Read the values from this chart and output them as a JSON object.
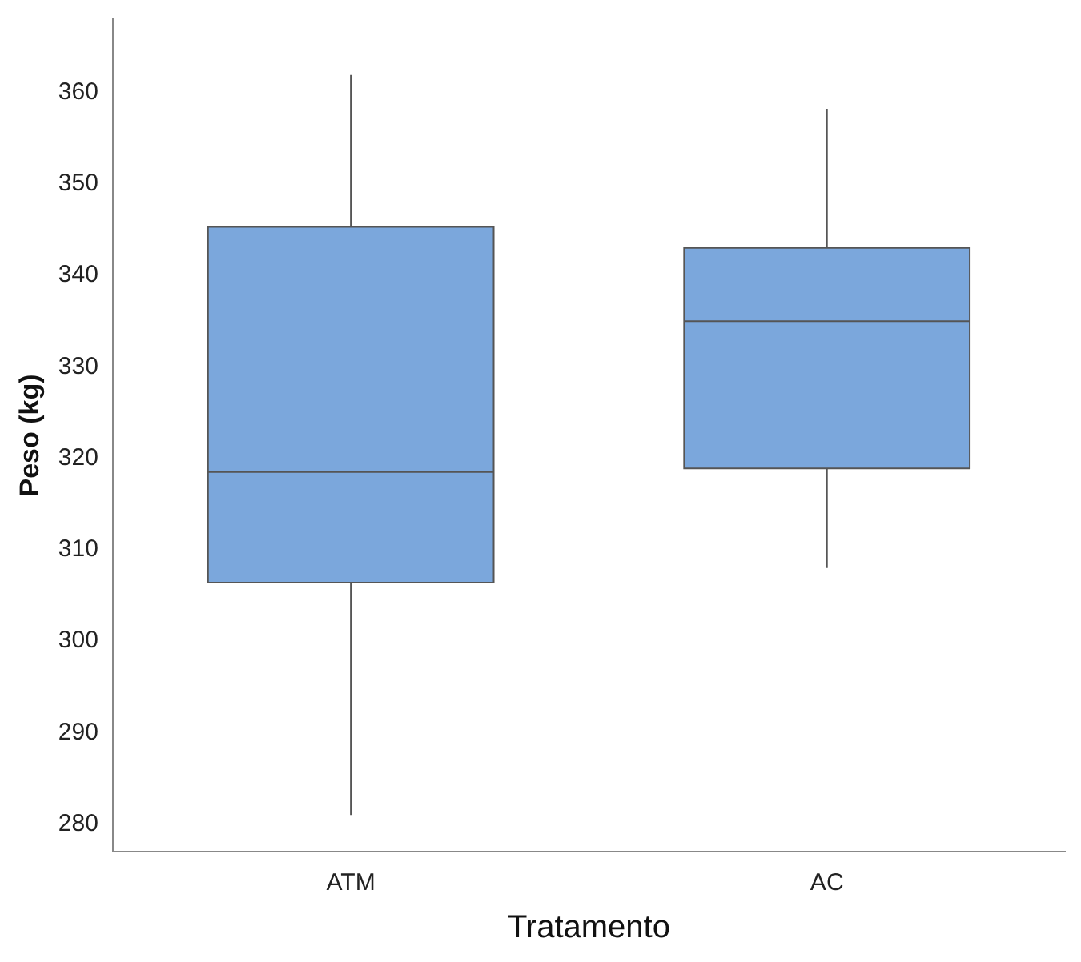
{
  "chart_data": {
    "type": "box",
    "xlabel": "Tratamento",
    "ylabel": "Peso (kg)",
    "categories": [
      "ATM",
      "AC"
    ],
    "color": "#7ba7dc",
    "boxes": [
      {
        "low": 281,
        "q1": 306.4,
        "median": 318.5,
        "q3": 345.3,
        "high": 361.9
      },
      {
        "low": 308,
        "q1": 318.9,
        "median": 335,
        "q3": 343,
        "high": 358.2
      }
    ],
    "ylim": [
      277,
      368
    ],
    "yticks": [
      280,
      290,
      300,
      310,
      320,
      330,
      340,
      350,
      360
    ]
  }
}
